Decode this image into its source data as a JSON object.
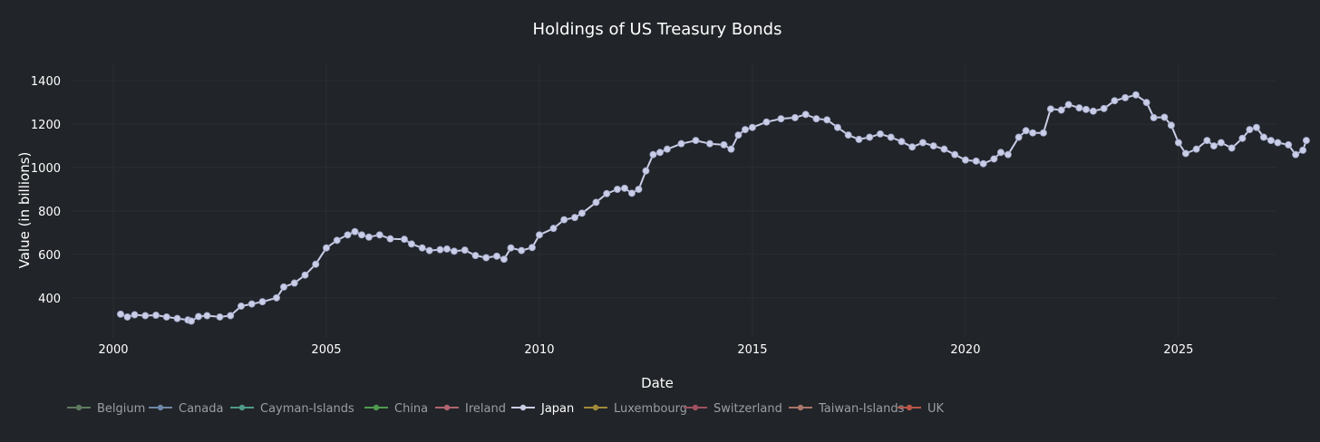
{
  "chart_data": {
    "type": "line",
    "title": "Holdings of US Treasury Bonds",
    "xlabel": "Date",
    "ylabel": "Value (in billions)",
    "xlim": [
      1999.0,
      2027.3
    ],
    "ylim": [
      220,
      1480
    ],
    "x_ticks": [
      2000,
      2005,
      2010,
      2015,
      2020,
      2025
    ],
    "x_tick_labels": [
      "2000",
      "2005",
      "2010",
      "2015",
      "2020",
      "2025"
    ],
    "y_ticks": [
      400,
      600,
      800,
      1000,
      1200,
      1400
    ],
    "y_tick_labels": [
      "400",
      "600",
      "800",
      "1000",
      "1200",
      "1400"
    ],
    "grid": true,
    "legend_position": "bottom-left",
    "legend": [
      {
        "name": "Belgium",
        "color": "#5e7a5e",
        "active": false
      },
      {
        "name": "Canada",
        "color": "#6d86a6",
        "active": false
      },
      {
        "name": "Cayman-Islands",
        "color": "#4f9a8a",
        "active": false
      },
      {
        "name": "China",
        "color": "#4f9a4f",
        "active": false
      },
      {
        "name": "Ireland",
        "color": "#b0646e",
        "active": false
      },
      {
        "name": "Japan",
        "color": "#c9cde6",
        "active": true
      },
      {
        "name": "Luxembourg",
        "color": "#a08a3a",
        "active": false
      },
      {
        "name": "Switzerland",
        "color": "#a05060",
        "active": false
      },
      {
        "name": "Taiwan-Islands",
        "color": "#a8766a",
        "active": false
      },
      {
        "name": "UK",
        "color": "#b85548",
        "active": false
      }
    ],
    "series": [
      {
        "name": "Japan",
        "color": "#c9cde6",
        "points": [
          [
            2000.17,
            325
          ],
          [
            2000.33,
            312
          ],
          [
            2000.5,
            322
          ],
          [
            2000.75,
            318
          ],
          [
            2001.0,
            320
          ],
          [
            2001.25,
            312
          ],
          [
            2001.5,
            305
          ],
          [
            2001.75,
            298
          ],
          [
            2001.83,
            293
          ],
          [
            2002.0,
            314
          ],
          [
            2002.2,
            318
          ],
          [
            2002.5,
            312
          ],
          [
            2002.75,
            318
          ],
          [
            2003.0,
            362
          ],
          [
            2003.25,
            372
          ],
          [
            2003.5,
            382
          ],
          [
            2003.83,
            400
          ],
          [
            2004.0,
            450
          ],
          [
            2004.25,
            468
          ],
          [
            2004.5,
            505
          ],
          [
            2004.75,
            555
          ],
          [
            2005.0,
            630
          ],
          [
            2005.25,
            665
          ],
          [
            2005.5,
            690
          ],
          [
            2005.67,
            705
          ],
          [
            2005.83,
            690
          ],
          [
            2006.0,
            680
          ],
          [
            2006.25,
            690
          ],
          [
            2006.5,
            672
          ],
          [
            2006.83,
            670
          ],
          [
            2007.0,
            648
          ],
          [
            2007.25,
            630
          ],
          [
            2007.42,
            618
          ],
          [
            2007.67,
            622
          ],
          [
            2007.83,
            625
          ],
          [
            2008.0,
            615
          ],
          [
            2008.25,
            620
          ],
          [
            2008.5,
            595
          ],
          [
            2008.75,
            585
          ],
          [
            2009.0,
            592
          ],
          [
            2009.17,
            578
          ],
          [
            2009.33,
            630
          ],
          [
            2009.58,
            618
          ],
          [
            2009.83,
            632
          ],
          [
            2010.0,
            690
          ],
          [
            2010.33,
            720
          ],
          [
            2010.58,
            760
          ],
          [
            2010.83,
            770
          ],
          [
            2011.0,
            790
          ],
          [
            2011.33,
            840
          ],
          [
            2011.58,
            880
          ],
          [
            2011.83,
            900
          ],
          [
            2012.0,
            905
          ],
          [
            2012.17,
            882
          ],
          [
            2012.33,
            900
          ],
          [
            2012.5,
            985
          ],
          [
            2012.67,
            1060
          ],
          [
            2012.83,
            1070
          ],
          [
            2013.0,
            1085
          ],
          [
            2013.33,
            1110
          ],
          [
            2013.67,
            1125
          ],
          [
            2014.0,
            1110
          ],
          [
            2014.33,
            1105
          ],
          [
            2014.5,
            1085
          ],
          [
            2014.67,
            1150
          ],
          [
            2014.83,
            1175
          ],
          [
            2015.0,
            1185
          ],
          [
            2015.33,
            1210
          ],
          [
            2015.67,
            1225
          ],
          [
            2016.0,
            1230
          ],
          [
            2016.25,
            1245
          ],
          [
            2016.5,
            1225
          ],
          [
            2016.75,
            1220
          ],
          [
            2017.0,
            1185
          ],
          [
            2017.25,
            1150
          ],
          [
            2017.5,
            1130
          ],
          [
            2017.75,
            1140
          ],
          [
            2018.0,
            1155
          ],
          [
            2018.25,
            1140
          ],
          [
            2018.5,
            1120
          ],
          [
            2018.75,
            1095
          ],
          [
            2019.0,
            1115
          ],
          [
            2019.25,
            1100
          ],
          [
            2019.5,
            1085
          ],
          [
            2019.75,
            1060
          ],
          [
            2020.0,
            1035
          ],
          [
            2020.25,
            1030
          ],
          [
            2020.42,
            1018
          ],
          [
            2020.67,
            1040
          ],
          [
            2020.83,
            1070
          ],
          [
            2021.0,
            1060
          ],
          [
            2021.25,
            1140
          ],
          [
            2021.42,
            1170
          ],
          [
            2021.58,
            1160
          ],
          [
            2021.83,
            1160
          ],
          [
            2022.0,
            1270
          ],
          [
            2022.25,
            1265
          ],
          [
            2022.42,
            1290
          ],
          [
            2022.67,
            1275
          ],
          [
            2022.83,
            1268
          ],
          [
            2023.0,
            1260
          ],
          [
            2023.25,
            1272
          ],
          [
            2023.5,
            1308
          ],
          [
            2023.75,
            1322
          ],
          [
            2024.0,
            1335
          ],
          [
            2024.25,
            1300
          ],
          [
            2024.42,
            1230
          ],
          [
            2024.67,
            1232
          ],
          [
            2024.83,
            1195
          ],
          [
            2025.0,
            1115
          ],
          [
            2025.17,
            1065
          ],
          [
            2025.42,
            1085
          ],
          [
            2025.67,
            1125
          ],
          [
            2025.83,
            1100
          ],
          [
            2026.0,
            1115
          ],
          [
            2026.25,
            1090
          ],
          [
            2026.5,
            1135
          ],
          [
            2026.67,
            1175
          ],
          [
            2026.83,
            1185
          ],
          [
            2027.0,
            1140
          ],
          [
            2027.17,
            1125
          ],
          [
            2027.33,
            1115
          ],
          [
            2027.58,
            1105
          ],
          [
            2027.75,
            1060
          ],
          [
            2027.92,
            1080
          ],
          [
            2028.0,
            1125
          ]
        ]
      }
    ]
  }
}
